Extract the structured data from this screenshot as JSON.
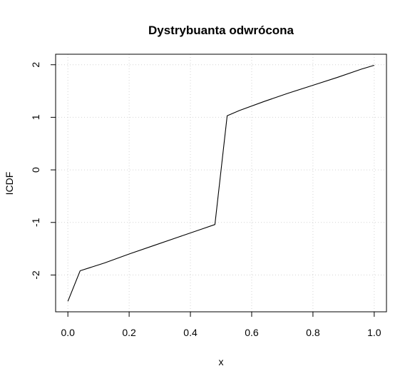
{
  "chart_data": {
    "type": "line",
    "title": "Dystrybuanta odwrócona",
    "xlabel": "x",
    "ylabel": "ICDF",
    "xlim": [
      -0.04,
      1.04
    ],
    "ylim": [
      -2.7,
      2.2
    ],
    "x_ticks": [
      0.0,
      0.2,
      0.4,
      0.6,
      0.8,
      1.0
    ],
    "x_tick_labels": [
      "0.0",
      "0.2",
      "0.4",
      "0.6",
      "0.8",
      "1.0"
    ],
    "y_ticks": [
      -2,
      -1,
      0,
      1,
      2
    ],
    "y_tick_labels": [
      "-2",
      "-1",
      "0",
      "1",
      "2"
    ],
    "grid": true,
    "colors": {
      "line": "#000000",
      "grid": "#d3d3d3",
      "frame": "#000000"
    },
    "series": [
      {
        "x": [
          0.0,
          0.04,
          0.12,
          0.2,
          0.28,
          0.36,
          0.44,
          0.48,
          0.52,
          0.56,
          0.64,
          0.72,
          0.8,
          0.88,
          0.96,
          1.0
        ],
        "y": [
          -2.5,
          -1.92,
          -1.77,
          -1.6,
          -1.44,
          -1.28,
          -1.12,
          -1.04,
          1.03,
          1.13,
          1.3,
          1.46,
          1.61,
          1.76,
          1.92,
          1.99
        ]
      }
    ]
  }
}
